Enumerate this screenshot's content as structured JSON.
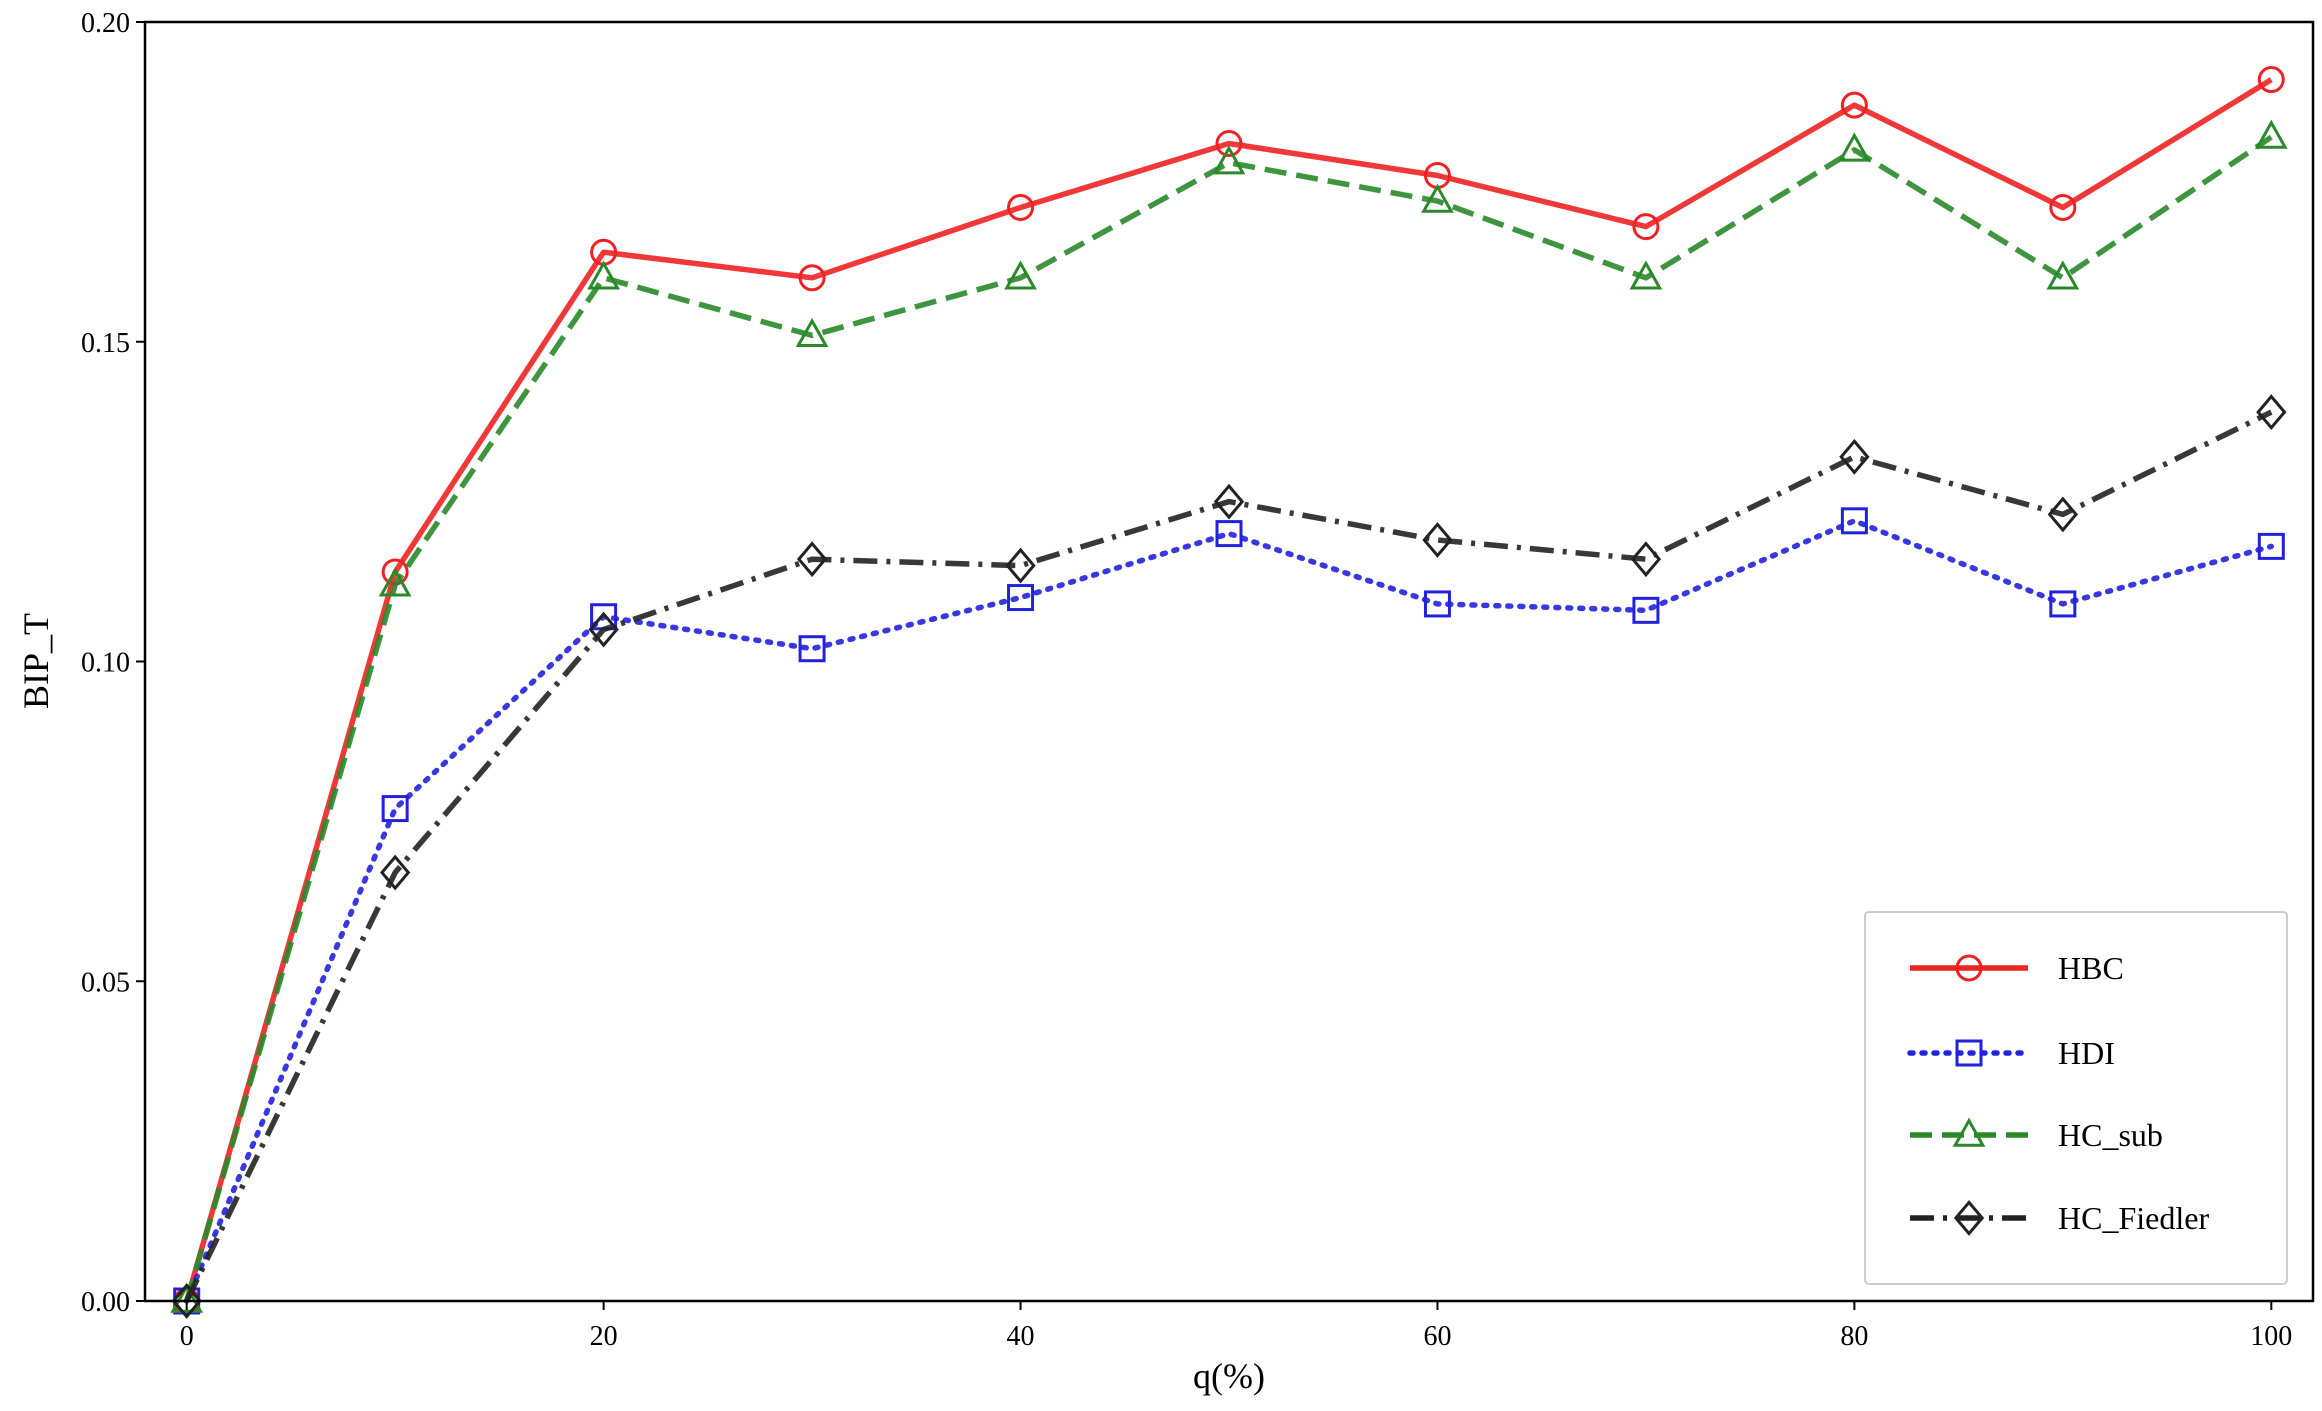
{
  "chart_data": {
    "type": "line",
    "title": "",
    "xlabel": "q(%)",
    "ylabel": "BIP_T",
    "x": [
      0,
      10,
      20,
      30,
      40,
      50,
      60,
      70,
      80,
      90,
      100
    ],
    "xlim": [
      -2,
      102
    ],
    "ylim": [
      0,
      0.2
    ],
    "xticks": [
      0,
      20,
      40,
      60,
      80,
      100
    ],
    "xtick_labels": [
      "0",
      "20",
      "40",
      "60",
      "80",
      "100"
    ],
    "yticks": [
      0,
      0.05,
      0.1,
      0.15,
      0.2
    ],
    "ytick_labels": [
      "0.00",
      "0.05",
      "0.10",
      "0.15",
      "0.20"
    ],
    "grid": false,
    "legend_position": "lower-right",
    "series": [
      {
        "name": "HBC",
        "color": "#ee2222",
        "linestyle": "solid",
        "marker": "circle",
        "values": [
          0.0,
          0.114,
          0.164,
          0.16,
          0.171,
          0.181,
          0.176,
          0.168,
          0.187,
          0.171,
          0.191
        ]
      },
      {
        "name": "HDI",
        "color": "#2222dd",
        "linestyle": "dotted",
        "marker": "square",
        "values": [
          0.0,
          0.077,
          0.107,
          0.102,
          0.11,
          0.12,
          0.109,
          0.108,
          0.122,
          0.109,
          0.118
        ]
      },
      {
        "name": "HC_sub",
        "color": "#2a8a2a",
        "linestyle": "dashed",
        "marker": "triangle",
        "values": [
          0.0,
          0.112,
          0.16,
          0.151,
          0.16,
          0.178,
          0.172,
          0.16,
          0.18,
          0.16,
          0.182
        ]
      },
      {
        "name": "HC_Fiedler",
        "color": "#222222",
        "linestyle": "dashdot",
        "marker": "diamond",
        "values": [
          0.0,
          0.067,
          0.105,
          0.116,
          0.115,
          0.125,
          0.119,
          0.116,
          0.132,
          0.123,
          0.139
        ]
      }
    ]
  }
}
